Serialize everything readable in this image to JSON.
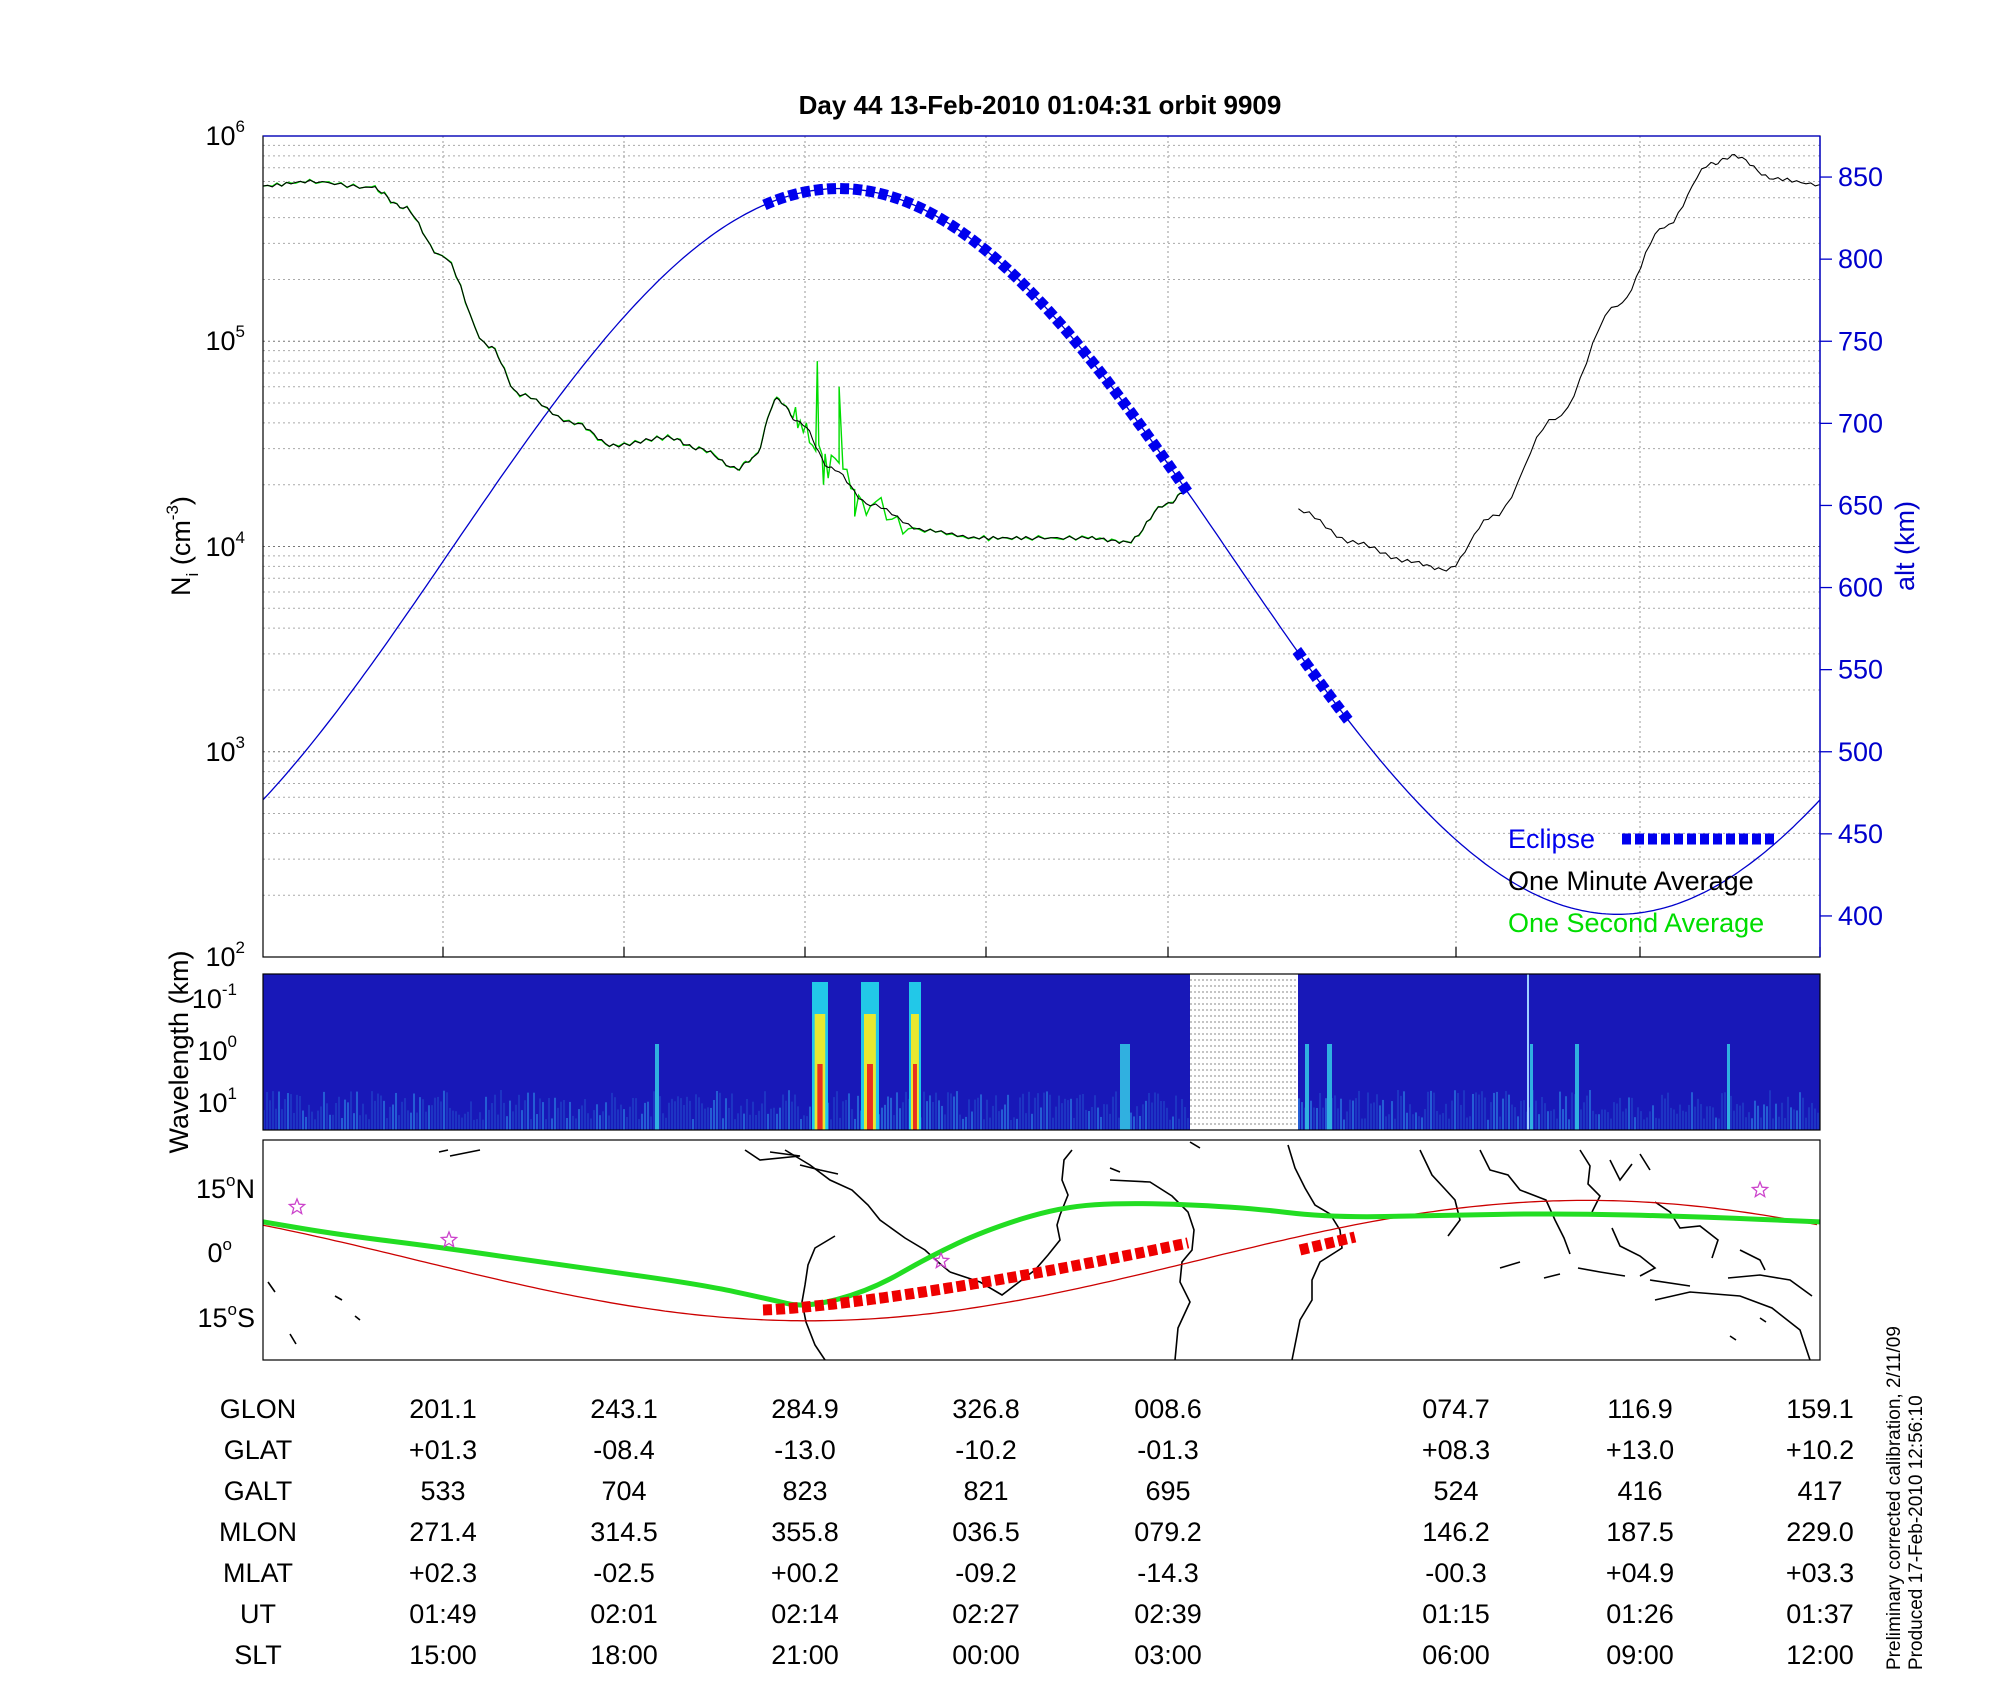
{
  "title": "Day 44  13-Feb-2010 01:04:31   orbit 9909",
  "colors": {
    "altitude": "#0000cc",
    "eclipse": "#0000ee",
    "one_minute": "#000000",
    "one_second": "#00dd00",
    "track_eclipse": "#ee0000",
    "magnetic_equator": "#cc0000",
    "ground_track": "#22dd22",
    "stars": "#cc44cc"
  },
  "chart_data": [
    {
      "type": "line",
      "panel": "ion-density",
      "ylabel_left": "N_i (cm^-3)",
      "ylabel_right": "alt (km)",
      "yscale_left": "log",
      "ylim_left": [
        100,
        1000000
      ],
      "left_ticks": [
        {
          "base": "10",
          "exp": "2"
        },
        {
          "base": "10",
          "exp": "3"
        },
        {
          "base": "10",
          "exp": "4"
        },
        {
          "base": "10",
          "exp": "5"
        },
        {
          "base": "10",
          "exp": "6"
        }
      ],
      "ylim_right": [
        375,
        875
      ],
      "right_ticks": [
        "400",
        "450",
        "500",
        "550",
        "600",
        "650",
        "700",
        "750",
        "800",
        "850"
      ],
      "grid": true,
      "legend_position": "bottom-right",
      "legend": [
        {
          "label": "Eclipse",
          "key": "eclipse"
        },
        {
          "label": "One Minute Average",
          "key": "one_minute"
        },
        {
          "label": "One Second Average",
          "key": "one_second"
        }
      ],
      "series": [
        {
          "name": "One Minute Average",
          "points_note": "x in orbit fraction (0-1), y in cm^-3",
          "x": [
            0,
            0.03,
            0.07,
            0.09,
            0.115,
            0.145,
            0.165,
            0.2,
            0.225,
            0.26,
            0.28,
            0.305,
            0.315,
            0.33,
            0.345,
            0.365,
            0.39,
            0.425,
            0.46,
            0.49,
            0.53,
            0.555,
            0.58,
            0.595
          ],
          "y": [
            570000,
            600000,
            560000,
            450000,
            260000,
            95000,
            55000,
            40000,
            31000,
            34000,
            30000,
            24000,
            27000,
            52000,
            40000,
            24000,
            16000,
            12000,
            11000,
            11000,
            11000,
            10500,
            16000,
            19000
          ]
        },
        {
          "name": "One Minute Average (after gap)",
          "x": [
            0.665,
            0.7,
            0.735,
            0.76,
            0.79,
            0.83,
            0.87,
            0.9,
            0.93,
            0.945,
            0.97,
            1.0
          ],
          "y": [
            15000,
            10500,
            8500,
            7700,
            14000,
            42000,
            150000,
            360000,
            730000,
            800000,
            620000,
            580000
          ]
        }
      ]
    },
    {
      "type": "heatmap",
      "panel": "wavelength-spectrogram",
      "ylabel": "Wavelength (km)",
      "y_ticks": [
        {
          "base": "10",
          "exp": "-1"
        },
        {
          "base": "10",
          "exp": "0"
        },
        {
          "base": "10",
          "exp": "1"
        }
      ]
    },
    {
      "type": "line",
      "panel": "ground-track-map",
      "y_ticks": [
        {
          "value": "15",
          "hemi": "N"
        },
        {
          "value": "0",
          "hemi": ""
        },
        {
          "value": "15",
          "hemi": "S"
        }
      ],
      "ylim": [
        -25,
        25
      ]
    }
  ],
  "table": {
    "row_labels": [
      "GLON",
      "GLAT",
      "GALT",
      "MLON",
      "MLAT",
      "UT",
      "SLT"
    ],
    "columns": [
      [
        "201.1",
        "+01.3",
        "533",
        "271.4",
        "+02.3",
        "01:49",
        "15:00"
      ],
      [
        "243.1",
        "-08.4",
        "704",
        "314.5",
        "-02.5",
        "02:01",
        "18:00"
      ],
      [
        "284.9",
        "-13.0",
        "823",
        "355.8",
        "+00.2",
        "02:14",
        "21:00"
      ],
      [
        "326.8",
        "-10.2",
        "821",
        "036.5",
        "-09.2",
        "02:27",
        "00:00"
      ],
      [
        "008.6",
        "-01.3",
        "695",
        "079.2",
        "-14.3",
        "02:39",
        "03:00"
      ],
      [
        "074.7",
        "+08.3",
        "524",
        "146.2",
        "-00.3",
        "01:15",
        "06:00"
      ],
      [
        "116.9",
        "+13.0",
        "416",
        "187.5",
        "+04.9",
        "01:26",
        "09:00"
      ],
      [
        "159.1",
        "+10.2",
        "417",
        "229.0",
        "+03.3",
        "01:37",
        "12:00"
      ]
    ]
  },
  "footer": {
    "line1": "Preliminary corrected calibration, 2/11/09",
    "line2": "Produced 17-Feb-2010 12:56:10"
  }
}
